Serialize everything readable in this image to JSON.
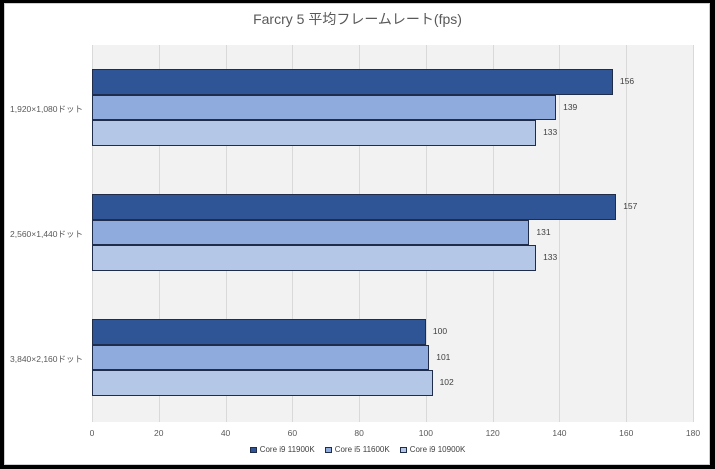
{
  "chart_data": {
    "type": "bar",
    "orientation": "horizontal",
    "title": "Farcry 5 平均フレームレート(fps)",
    "categories": [
      "1,920×1,080ドット",
      "2,560×1,440ドット",
      "3,840×2,160ドット"
    ],
    "series": [
      {
        "name": "Core i9 11900K",
        "color": "#2f5597",
        "values": [
          156,
          157,
          100
        ]
      },
      {
        "name": "Core i5 11600K",
        "color": "#8faadc",
        "values": [
          139,
          131,
          101
        ]
      },
      {
        "name": "Core i9 10900K",
        "color": "#b4c7e7",
        "values": [
          133,
          133,
          102
        ]
      }
    ],
    "xlabel": "",
    "ylabel": "",
    "xlim": [
      0,
      180
    ],
    "xticks": [
      "0",
      "20",
      "40",
      "60",
      "80",
      "100",
      "120",
      "140",
      "160",
      "180"
    ],
    "grid": true,
    "legend_position": "bottom"
  }
}
